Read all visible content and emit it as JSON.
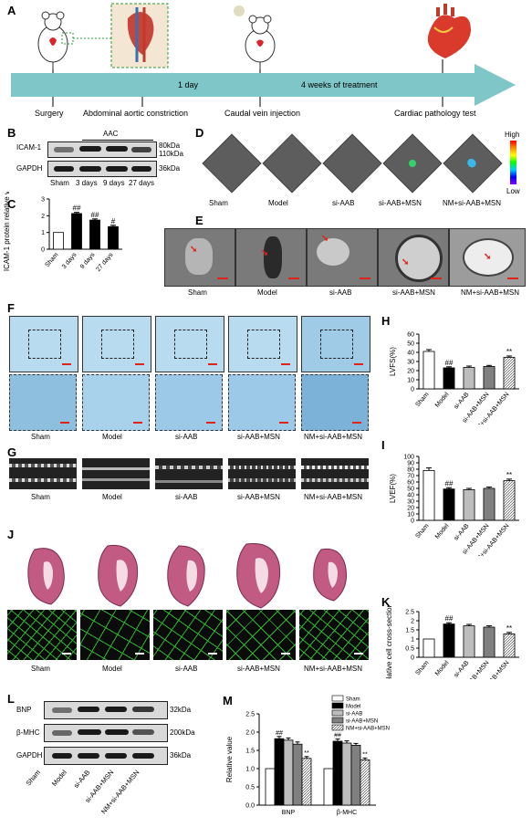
{
  "panels": {
    "A": "A",
    "B": "B",
    "C": "C",
    "D": "D",
    "E": "E",
    "F": "F",
    "G": "G",
    "H": "H",
    "I": "I",
    "J": "J",
    "K": "K",
    "L": "L",
    "M": "M"
  },
  "timeline": {
    "interval1": "1 day",
    "interval2": "4 weeks of treatment",
    "steps": [
      "Surgery",
      "Abdominal aortic constriction",
      "Caudal vein injection",
      "Cardiac pathology test"
    ]
  },
  "groups": [
    "Sham",
    "Model",
    "si-AAB",
    "si-AAB+MSN",
    "NM+si-AAB+MSN"
  ],
  "blotB": {
    "header": "AAC",
    "rows": [
      "ICAM-1",
      "GAPDH"
    ],
    "sizes": [
      "80kDa",
      "110kDa",
      "36kDa"
    ],
    "lanes": [
      "Sham",
      "3 days",
      "9 days",
      "27 days"
    ]
  },
  "imagingD": {
    "high": "High",
    "low": "Low"
  },
  "blotL": {
    "rows": [
      "BNP",
      "β-MHC",
      "GAPDH"
    ],
    "sizes": [
      "32kDa",
      "200kDa",
      "36kDa"
    ]
  },
  "colors": {
    "timeline": "#7fc6c9",
    "wga": "#2fb52f",
    "masson": "#b9dbef"
  },
  "chart_data": [
    {
      "id": "C",
      "type": "bar",
      "categories": [
        "Sham",
        "3 days",
        "9 days",
        "27 days"
      ],
      "values": [
        1.0,
        2.13,
        1.74,
        1.35
      ],
      "errors": [
        0,
        0.07,
        0.07,
        0.08
      ],
      "annotations": [
        "",
        "##",
        "##",
        "#"
      ],
      "ylabel": "ICAM-1 protein relative value",
      "ylim": [
        0,
        3
      ],
      "yticks": [
        0,
        1,
        2,
        3
      ]
    },
    {
      "id": "H",
      "type": "bar",
      "categories": [
        "Sham",
        "Model",
        "si-AAB",
        "si-AAB+MSN",
        "NM+si-AAB+MSN"
      ],
      "values": [
        41,
        23,
        23.5,
        24.5,
        34.5
      ],
      "errors": [
        2,
        1.2,
        1.5,
        1.2,
        1.5
      ],
      "annotations": [
        "",
        "##",
        "",
        "",
        "**"
      ],
      "ylabel": "LVFS(%)",
      "ylim": [
        0,
        60
      ],
      "yticks": [
        0,
        10,
        20,
        30,
        40,
        50,
        60
      ]
    },
    {
      "id": "I",
      "type": "bar",
      "categories": [
        "Sham",
        "Model",
        "si-AAB",
        "si-AAB+MSN",
        "NM+si-AAB+MSN"
      ],
      "values": [
        78,
        49,
        48,
        50,
        62
      ],
      "errors": [
        4,
        2,
        2,
        2,
        2.5
      ],
      "annotations": [
        "",
        "##",
        "",
        "",
        "**"
      ],
      "ylabel": "LVEF(%)",
      "ylim": [
        0,
        100
      ],
      "yticks": [
        0,
        10,
        20,
        30,
        40,
        50,
        60,
        70,
        80,
        90,
        100
      ]
    },
    {
      "id": "K",
      "type": "bar",
      "categories": [
        "Sham",
        "Model",
        "si-AAB",
        "si-AAB+MSN",
        "NM+si-AAB+MSN"
      ],
      "values": [
        1.0,
        1.82,
        1.72,
        1.65,
        1.28
      ],
      "errors": [
        0,
        0.07,
        0.08,
        0.07,
        0.08
      ],
      "annotations": [
        "",
        "##",
        "",
        "",
        "**"
      ],
      "ylabel": "Relative cell cross-sectional area",
      "ylim": [
        0,
        2.5
      ],
      "yticks": [
        0.0,
        0.5,
        1.0,
        1.5,
        2.0,
        2.5
      ]
    },
    {
      "id": "M",
      "type": "bar",
      "categories": [
        "BNP",
        "β-MHC"
      ],
      "series": [
        {
          "name": "Sham",
          "values": [
            1.0,
            1.0
          ],
          "errors": [
            0,
            0
          ]
        },
        {
          "name": "Model",
          "values": [
            1.82,
            1.75
          ],
          "errors": [
            0.06,
            0.06
          ]
        },
        {
          "name": "si-AAB",
          "values": [
            1.78,
            1.7
          ],
          "errors": [
            0.06,
            0.06
          ]
        },
        {
          "name": "si-AAB+MSN",
          "values": [
            1.67,
            1.64
          ],
          "errors": [
            0.06,
            0.05
          ]
        },
        {
          "name": "NM+si-AAB+MSN",
          "values": [
            1.28,
            1.24
          ],
          "errors": [
            0.05,
            0.05
          ]
        }
      ],
      "annotations": [
        [
          "",
          "##",
          "",
          "",
          "**"
        ],
        [
          "",
          "##",
          "",
          "",
          "**"
        ]
      ],
      "ylabel": "Relative value",
      "ylim": [
        0.0,
        2.5
      ],
      "yticks": [
        0.0,
        0.5,
        1.0,
        1.5,
        2.0,
        2.5
      ],
      "legend": "top-right"
    }
  ]
}
